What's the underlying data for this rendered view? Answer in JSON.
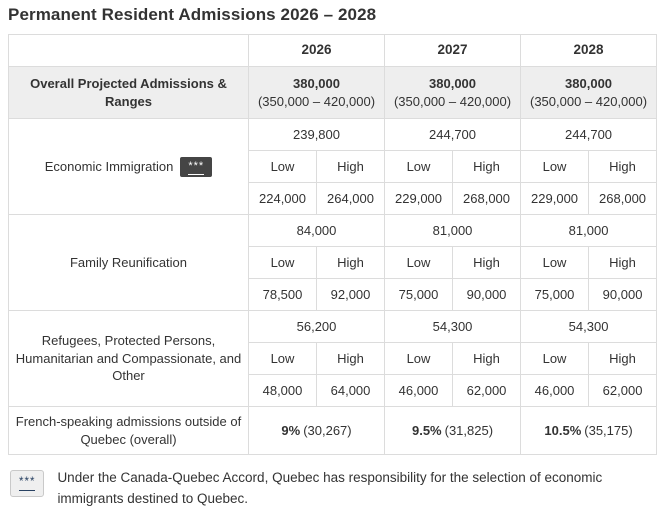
{
  "title": "Permanent Resident Admissions 2026 – 2028",
  "colors": {
    "border": "#dcdcdc",
    "shaded_row_bg": "#eeeeee",
    "text": "#333333",
    "dark_badge_bg": "#454545",
    "dark_badge_text": "#ffffff",
    "footnote_badge_bg": "#efefef",
    "footnote_badge_border": "#c9c9c9",
    "footnote_badge_text": "#284162"
  },
  "table": {
    "years": [
      "2026",
      "2027",
      "2028"
    ],
    "low_label": "Low",
    "high_label": "High",
    "overall": {
      "label": "Overall Projected Admissions & Ranges",
      "values": [
        "380,000",
        "380,000",
        "380,000"
      ],
      "ranges": [
        "(350,000 – 420,000)",
        "(350,000 – 420,000)",
        "(350,000 – 420,000)"
      ]
    },
    "groups": [
      {
        "label": "Economic Immigration",
        "badge": "***",
        "totals": [
          "239,800",
          "244,700",
          "244,700"
        ],
        "lows": [
          "224,000",
          "229,000",
          "229,000"
        ],
        "highs": [
          "264,000",
          "268,000",
          "268,000"
        ]
      },
      {
        "label": "Family Reunification",
        "totals": [
          "84,000",
          "81,000",
          "81,000"
        ],
        "lows": [
          "78,500",
          "75,000",
          "75,000"
        ],
        "highs": [
          "92,000",
          "90,000",
          "90,000"
        ]
      },
      {
        "label": "Refugees, Protected Persons, Humanitarian and Compassionate, and Other",
        "totals": [
          "56,200",
          "54,300",
          "54,300"
        ],
        "lows": [
          "48,000",
          "46,000",
          "46,000"
        ],
        "highs": [
          "64,000",
          "62,000",
          "62,000"
        ]
      }
    ],
    "french": {
      "label": "French-speaking admissions outside of Quebec (overall)",
      "percents": [
        "9%",
        "9.5%",
        "10.5%"
      ],
      "counts": [
        "(30,267)",
        "(31,825)",
        "(35,175)"
      ]
    }
  },
  "footnote": {
    "marker": "***",
    "text": "Under the Canada-Quebec Accord, Quebec has responsibility for the selection of economic immigrants destined to Quebec."
  }
}
